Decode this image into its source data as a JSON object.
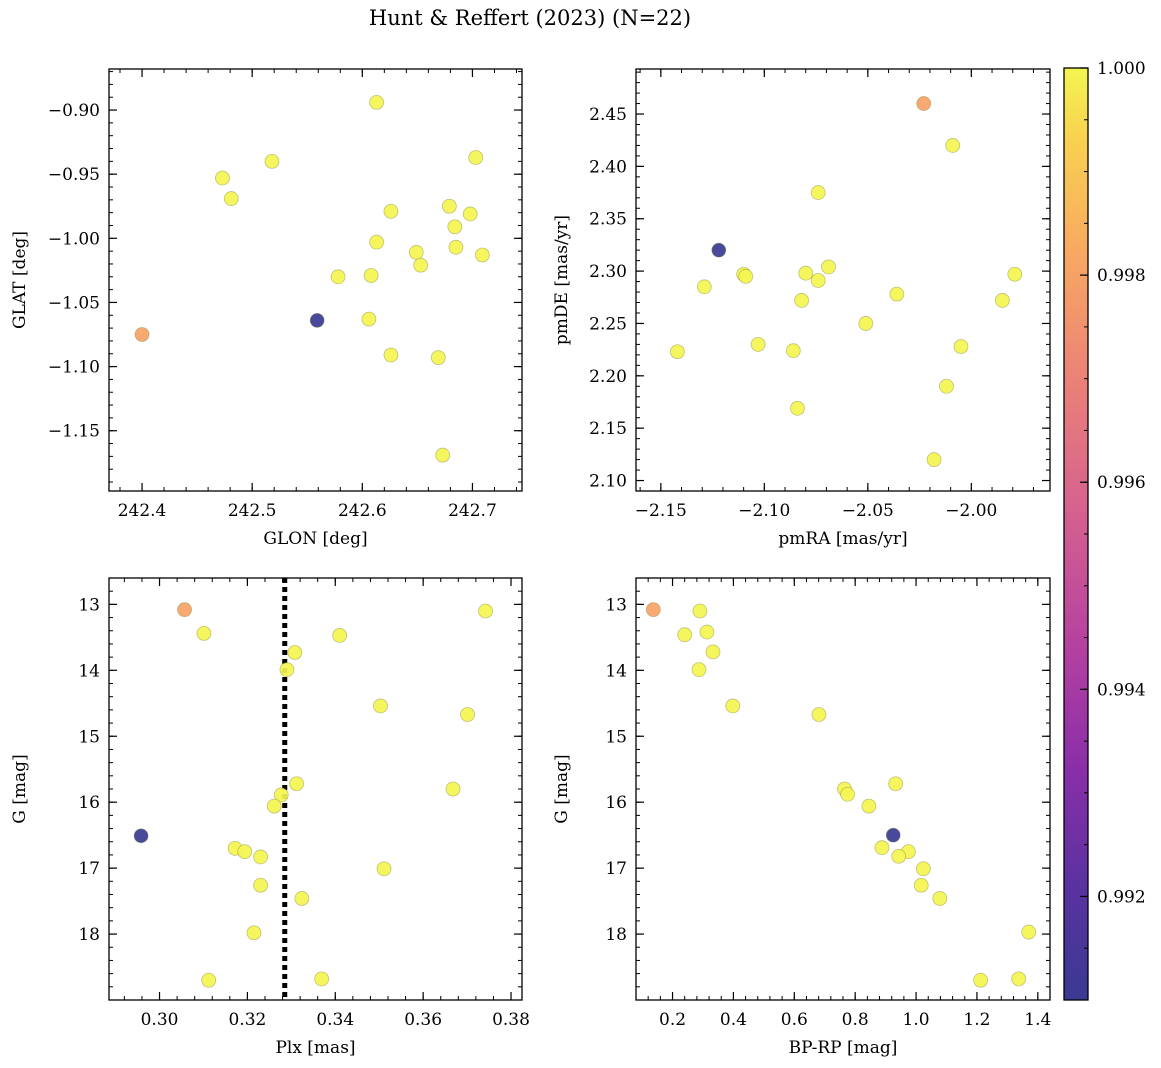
{
  "figure_title": "Hunt & Reffert (2023) (N=22)",
  "chart_data": [
    {
      "type": "scatter",
      "xlabel": "GLON [deg]",
      "ylabel": "GLAT [deg]",
      "xlim": [
        242.37,
        242.745
      ],
      "ylim": [
        -1.197,
        -0.868
      ],
      "invert_y": false,
      "xticks": [
        242.4,
        242.5,
        242.6,
        242.7
      ],
      "xtick_labels": [
        "242.4",
        "242.5",
        "242.6",
        "242.7"
      ],
      "yticks": [
        -0.9,
        -0.95,
        -1.0,
        -1.05,
        -1.1,
        -1.15
      ],
      "ytick_labels": [
        "−0.90",
        "−0.95",
        "−1.00",
        "−1.05",
        "−1.10",
        "−1.15"
      ],
      "points": [
        {
          "x": 242.613,
          "y": -0.894,
          "p": 1.0
        },
        {
          "x": 242.703,
          "y": -0.937,
          "p": 1.0
        },
        {
          "x": 242.518,
          "y": -0.94,
          "p": 1.0
        },
        {
          "x": 242.473,
          "y": -0.953,
          "p": 1.0
        },
        {
          "x": 242.481,
          "y": -0.969,
          "p": 1.0
        },
        {
          "x": 242.679,
          "y": -0.975,
          "p": 1.0
        },
        {
          "x": 242.698,
          "y": -0.981,
          "p": 1.0
        },
        {
          "x": 242.626,
          "y": -0.979,
          "p": 1.0
        },
        {
          "x": 242.684,
          "y": -0.991,
          "p": 1.0
        },
        {
          "x": 242.613,
          "y": -1.003,
          "p": 1.0
        },
        {
          "x": 242.649,
          "y": -1.011,
          "p": 1.0
        },
        {
          "x": 242.685,
          "y": -1.007,
          "p": 1.0
        },
        {
          "x": 242.709,
          "y": -1.013,
          "p": 1.0
        },
        {
          "x": 242.653,
          "y": -1.021,
          "p": 1.0
        },
        {
          "x": 242.578,
          "y": -1.03,
          "p": 1.0
        },
        {
          "x": 242.608,
          "y": -1.029,
          "p": 1.0
        },
        {
          "x": 242.606,
          "y": -1.063,
          "p": 1.0
        },
        {
          "x": 242.626,
          "y": -1.091,
          "p": 1.0
        },
        {
          "x": 242.669,
          "y": -1.093,
          "p": 1.0
        },
        {
          "x": 242.673,
          "y": -1.169,
          "p": 1.0
        },
        {
          "x": 242.559,
          "y": -1.064,
          "p": 0.991
        },
        {
          "x": 242.4,
          "y": -1.075,
          "p": 0.998
        }
      ]
    },
    {
      "type": "scatter",
      "xlabel": "pmRA [mas/yr]",
      "ylabel": "pmDE [mas/yr]",
      "xlim": [
        -2.162,
        -1.962
      ],
      "ylim": [
        2.09,
        2.493
      ],
      "invert_y": false,
      "xticks": [
        -2.15,
        -2.1,
        -2.05,
        -2.0
      ],
      "xtick_labels": [
        "−2.15",
        "−2.10",
        "−2.05",
        "−2.00"
      ],
      "yticks": [
        2.1,
        2.15,
        2.2,
        2.25,
        2.3,
        2.35,
        2.4,
        2.45
      ],
      "ytick_labels": [
        "2.10",
        "2.15",
        "2.20",
        "2.25",
        "2.30",
        "2.35",
        "2.40",
        "2.45"
      ],
      "points": [
        {
          "x": -2.023,
          "y": 2.46,
          "p": 0.998
        },
        {
          "x": -2.009,
          "y": 2.42,
          "p": 1.0
        },
        {
          "x": -2.074,
          "y": 2.375,
          "p": 1.0
        },
        {
          "x": -2.122,
          "y": 2.32,
          "p": 0.991
        },
        {
          "x": -2.069,
          "y": 2.304,
          "p": 1.0
        },
        {
          "x": -2.11,
          "y": 2.297,
          "p": 1.0
        },
        {
          "x": -2.109,
          "y": 2.295,
          "p": 1.0
        },
        {
          "x": -2.08,
          "y": 2.298,
          "p": 1.0
        },
        {
          "x": -2.074,
          "y": 2.291,
          "p": 1.0
        },
        {
          "x": -1.979,
          "y": 2.297,
          "p": 1.0
        },
        {
          "x": -2.129,
          "y": 2.285,
          "p": 1.0
        },
        {
          "x": -2.036,
          "y": 2.278,
          "p": 1.0
        },
        {
          "x": -2.082,
          "y": 2.272,
          "p": 1.0
        },
        {
          "x": -1.985,
          "y": 2.272,
          "p": 1.0
        },
        {
          "x": -2.051,
          "y": 2.25,
          "p": 1.0
        },
        {
          "x": -2.103,
          "y": 2.23,
          "p": 1.0
        },
        {
          "x": -2.005,
          "y": 2.228,
          "p": 1.0
        },
        {
          "x": -2.142,
          "y": 2.223,
          "p": 1.0
        },
        {
          "x": -2.086,
          "y": 2.224,
          "p": 1.0
        },
        {
          "x": -2.012,
          "y": 2.19,
          "p": 1.0
        },
        {
          "x": -2.084,
          "y": 2.169,
          "p": 1.0
        },
        {
          "x": -2.018,
          "y": 2.12,
          "p": 1.0
        }
      ]
    },
    {
      "type": "scatter",
      "xlabel": "Plx [mas]",
      "ylabel": "G [mag]",
      "xlim": [
        0.2885,
        0.3825
      ],
      "ylim": [
        19.0,
        12.6
      ],
      "invert_y": true,
      "xticks": [
        0.3,
        0.32,
        0.34,
        0.36,
        0.38
      ],
      "xtick_labels": [
        "0.30",
        "0.32",
        "0.34",
        "0.36",
        "0.38"
      ],
      "yticks": [
        13,
        14,
        15,
        16,
        17,
        18
      ],
      "ytick_labels": [
        "13",
        "14",
        "15",
        "16",
        "17",
        "18"
      ],
      "vline": 0.3285,
      "points": [
        {
          "x": 0.3057,
          "y": 13.08,
          "p": 0.998
        },
        {
          "x": 0.3742,
          "y": 13.1,
          "p": 1.0
        },
        {
          "x": 0.3101,
          "y": 13.44,
          "p": 1.0
        },
        {
          "x": 0.341,
          "y": 13.47,
          "p": 1.0
        },
        {
          "x": 0.3308,
          "y": 13.73,
          "p": 1.0
        },
        {
          "x": 0.329,
          "y": 13.99,
          "p": 1.0
        },
        {
          "x": 0.3503,
          "y": 14.54,
          "p": 1.0
        },
        {
          "x": 0.3701,
          "y": 14.67,
          "p": 1.0
        },
        {
          "x": 0.3312,
          "y": 15.72,
          "p": 1.0
        },
        {
          "x": 0.3668,
          "y": 15.8,
          "p": 1.0
        },
        {
          "x": 0.3277,
          "y": 15.89,
          "p": 1.0
        },
        {
          "x": 0.3261,
          "y": 16.06,
          "p": 1.0
        },
        {
          "x": 0.2958,
          "y": 16.51,
          "p": 0.991
        },
        {
          "x": 0.3172,
          "y": 16.7,
          "p": 1.0
        },
        {
          "x": 0.3194,
          "y": 16.75,
          "p": 1.0
        },
        {
          "x": 0.323,
          "y": 16.83,
          "p": 1.0
        },
        {
          "x": 0.3511,
          "y": 17.01,
          "p": 1.0
        },
        {
          "x": 0.323,
          "y": 17.26,
          "p": 1.0
        },
        {
          "x": 0.3324,
          "y": 17.46,
          "p": 1.0
        },
        {
          "x": 0.3215,
          "y": 17.98,
          "p": 1.0
        },
        {
          "x": 0.3112,
          "y": 18.7,
          "p": 1.0
        },
        {
          "x": 0.3369,
          "y": 18.68,
          "p": 1.0
        }
      ]
    },
    {
      "type": "scatter",
      "xlabel": "BP-RP [mag]",
      "ylabel": "G [mag]",
      "xlim": [
        0.08,
        1.44
      ],
      "ylim": [
        19.0,
        12.6
      ],
      "invert_y": true,
      "xticks": [
        0.2,
        0.4,
        0.6,
        0.8,
        1.0,
        1.2,
        1.4
      ],
      "xtick_labels": [
        "0.2",
        "0.4",
        "0.6",
        "0.8",
        "1.0",
        "1.2",
        "1.4"
      ],
      "yticks": [
        13,
        14,
        15,
        16,
        17,
        18
      ],
      "ytick_labels": [
        "13",
        "14",
        "15",
        "16",
        "17",
        "18"
      ],
      "points": [
        {
          "x": 0.137,
          "y": 13.08,
          "p": 0.998
        },
        {
          "x": 0.29,
          "y": 13.1,
          "p": 1.0
        },
        {
          "x": 0.24,
          "y": 13.46,
          "p": 1.0
        },
        {
          "x": 0.313,
          "y": 13.42,
          "p": 1.0
        },
        {
          "x": 0.333,
          "y": 13.72,
          "p": 1.0
        },
        {
          "x": 0.287,
          "y": 13.99,
          "p": 1.0
        },
        {
          "x": 0.398,
          "y": 14.54,
          "p": 1.0
        },
        {
          "x": 0.681,
          "y": 14.67,
          "p": 1.0
        },
        {
          "x": 0.765,
          "y": 15.8,
          "p": 1.0
        },
        {
          "x": 0.775,
          "y": 15.88,
          "p": 1.0
        },
        {
          "x": 0.845,
          "y": 16.06,
          "p": 1.0
        },
        {
          "x": 0.933,
          "y": 15.72,
          "p": 1.0
        },
        {
          "x": 0.925,
          "y": 16.5,
          "p": 0.991
        },
        {
          "x": 0.888,
          "y": 16.69,
          "p": 1.0
        },
        {
          "x": 0.975,
          "y": 16.75,
          "p": 1.0
        },
        {
          "x": 0.943,
          "y": 16.82,
          "p": 1.0
        },
        {
          "x": 1.024,
          "y": 17.01,
          "p": 1.0
        },
        {
          "x": 1.017,
          "y": 17.26,
          "p": 1.0
        },
        {
          "x": 1.078,
          "y": 17.46,
          "p": 1.0
        },
        {
          "x": 1.37,
          "y": 17.97,
          "p": 1.0
        },
        {
          "x": 1.212,
          "y": 18.7,
          "p": 1.0
        },
        {
          "x": 1.337,
          "y": 18.68,
          "p": 1.0
        }
      ]
    }
  ],
  "colorbar": {
    "cmap": "plasma",
    "vmin": 0.991,
    "vmax": 1.0,
    "ticks": [
      0.992,
      0.994,
      0.996,
      0.998,
      1.0
    ],
    "tick_labels": [
      "0.992",
      "0.994",
      "0.996",
      "0.998",
      "1.000"
    ]
  }
}
